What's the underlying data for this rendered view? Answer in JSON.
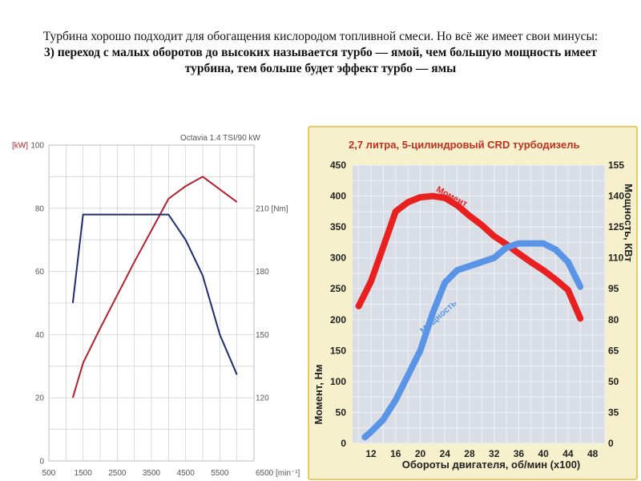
{
  "caption": {
    "line1": "Турбина хорошо подходит для обогащения кислородом топливной смеси. Но всё же имеет свои минусы:",
    "line2": "3) переход с малых оборотов до высоких называется турбо — ямой, чем большую мощность имеет турбина, тем больше будет эффект турбо — ямы"
  },
  "chart_data": [
    {
      "type": "line",
      "title": "Octavia 1.4 TSI/90 kW",
      "colors": {
        "power": "#b5202e",
        "torque": "#1c2e6e"
      },
      "x_ticks": [
        "500",
        "1500",
        "2500",
        "3500",
        "4500",
        "5500",
        "6500 [min⁻¹]"
      ],
      "y_left_unit": "[kW]",
      "y_left_ticks": [
        "0",
        "20",
        "40",
        "60",
        "80",
        "100"
      ],
      "y_right_ticks": [
        "120",
        "150",
        "180",
        "210 [Nm]"
      ],
      "xlim": [
        500,
        6500
      ],
      "ylim_left": [
        0,
        100
      ],
      "ylim_right": [
        90,
        240
      ],
      "grid": true,
      "series": [
        {
          "axis": "left",
          "x": [
            1200,
            1500,
            2000,
            3000,
            4000,
            4500,
            5000,
            5500,
            6000
          ],
          "y": [
            20,
            31,
            42,
            63,
            83,
            87,
            90,
            86,
            82
          ]
        },
        {
          "axis": "right",
          "x": [
            1200,
            1500,
            2000,
            3000,
            4000,
            4500,
            5000,
            5500,
            6000
          ],
          "y": [
            165,
            207,
            207,
            207,
            207,
            195,
            178,
            150,
            131
          ]
        }
      ]
    },
    {
      "type": "line",
      "title": "2,7 литра, 5-цилиндровый CRD турбодизель",
      "colors": {
        "torque": "#e8201f",
        "power": "#5a94e6",
        "title": "#c0301e",
        "panel": "#f6f0cc",
        "plot": "#d9dee6",
        "border": "#e5cb62"
      },
      "xlabel": "Обороты двигателя, об/мин (x100)",
      "ylabel_left": "Момент, Нм",
      "ylabel_right": "Мощность, КВт",
      "x_ticks": [
        "12",
        "16",
        "20",
        "24",
        "28",
        "32",
        "36",
        "40",
        "44",
        "48"
      ],
      "y_left_ticks": [
        "0",
        "50",
        "100",
        "150",
        "200",
        "250",
        "300",
        "350",
        "400",
        "450"
      ],
      "y_right_ticks": [
        "0",
        "35",
        "50",
        "65",
        "80",
        "95",
        "110",
        "125",
        "140",
        "155"
      ],
      "xlim": [
        9,
        50
      ],
      "ylim_left": [
        0,
        450
      ],
      "ylim_right": [
        0,
        155
      ],
      "grid": true,
      "series": [
        {
          "name": "Момент",
          "axis": "left",
          "x": [
            10,
            12,
            14,
            16,
            18,
            20,
            22,
            24,
            26,
            28,
            30,
            32,
            34,
            36,
            38,
            40,
            42,
            44,
            46
          ],
          "y": [
            222,
            262,
            318,
            375,
            390,
            398,
            400,
            397,
            385,
            368,
            353,
            335,
            322,
            307,
            293,
            280,
            265,
            248,
            202
          ]
        },
        {
          "name": "Мощность",
          "axis": "right",
          "x": [
            11,
            12,
            14,
            16,
            18,
            20,
            22,
            24,
            26,
            28,
            30,
            32,
            34,
            36,
            38,
            40,
            42,
            44,
            46
          ],
          "y": [
            7,
            13,
            27,
            41,
            53,
            65,
            83,
            98,
            104,
            106,
            108,
            110,
            115,
            117,
            117,
            117,
            114,
            108,
            96
          ]
        }
      ]
    }
  ]
}
